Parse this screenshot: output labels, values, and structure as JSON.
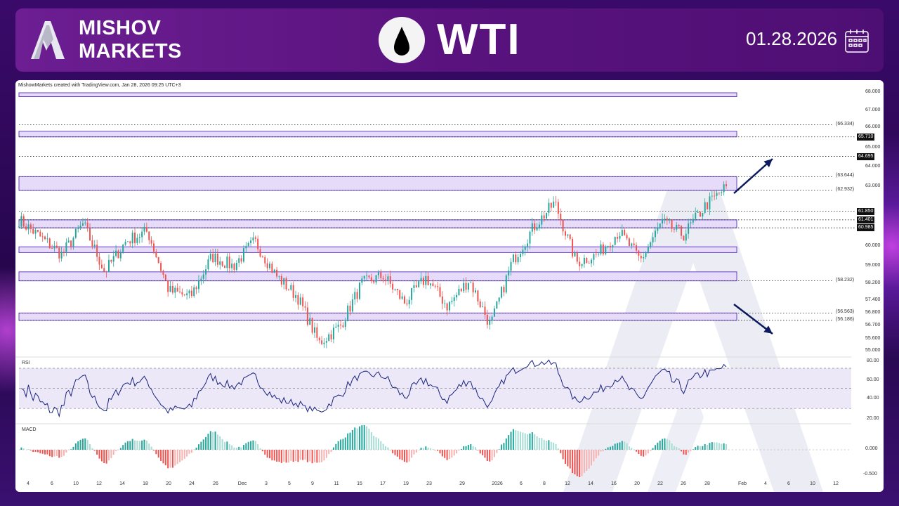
{
  "header": {
    "brand_line1": "MISHOV",
    "brand_line2": "MARKETS",
    "instrument": "WTI",
    "date": "01.28.2026",
    "icons": {
      "logo": "mishov-a-logo",
      "drop": "oil-drop-icon",
      "calendar": "calendar-icon"
    }
  },
  "colors": {
    "up": "#26a69a",
    "down": "#ef5350",
    "zone": "#6a3fc4",
    "rsi": "#1a237e",
    "arrow": "#0d1b5e"
  },
  "chart_data": {
    "type": "candlestick",
    "credit": "MishowMarkets created with TradingView.com, Jan 28, 2026 09:25 UTC+3",
    "price_axis": [
      "68.000",
      "67.000",
      "66.000",
      "65.000",
      "64.000",
      "63.000",
      "60.000",
      "59.000",
      "58.200",
      "57.400",
      "56.800",
      "56.700",
      "55.600",
      "55.000"
    ],
    "ylim": [
      55,
      68
    ],
    "levels": [
      {
        "price": 66.334,
        "label": "(66.334)",
        "tag": false
      },
      {
        "price": 65.71,
        "label": "65.710",
        "tag": true
      },
      {
        "price": 64.695,
        "label": "64.695",
        "tag": true
      },
      {
        "price": 63.644,
        "label": "(63.644)",
        "tag": false
      },
      {
        "price": 62.932,
        "label": "(62.932)",
        "tag": false
      },
      {
        "price": 61.85,
        "label": "61.850",
        "tag": true
      },
      {
        "price": 61.401,
        "label": "61.401",
        "tag": true
      },
      {
        "price": 60.985,
        "label": "60.985",
        "tag": true
      },
      {
        "price": 58.232,
        "label": "(58.232)",
        "tag": false
      },
      {
        "price": 56.563,
        "label": "(56.563)",
        "tag": false
      },
      {
        "price": 56.186,
        "label": "(56.186)",
        "tag": false
      }
    ],
    "zones": [
      [
        67.8,
        68.0
      ],
      [
        65.71,
        66.0
      ],
      [
        62.932,
        63.644
      ],
      [
        60.985,
        61.401
      ],
      [
        59.7,
        60.0
      ],
      [
        58.232,
        58.7
      ],
      [
        56.186,
        56.563
      ]
    ],
    "close_path": [
      [
        0,
        61.4
      ],
      [
        1,
        60.5
      ],
      [
        2,
        59.6
      ],
      [
        3,
        61.2
      ],
      [
        4,
        58.7
      ],
      [
        5,
        60.3
      ],
      [
        6,
        60.8
      ],
      [
        7,
        57.7
      ],
      [
        8,
        57.4
      ],
      [
        9,
        59.5
      ],
      [
        10,
        59.0
      ],
      [
        11,
        60.3
      ],
      [
        12,
        58.5
      ],
      [
        13,
        57.4
      ],
      [
        14,
        55.0
      ],
      [
        15,
        55.9
      ],
      [
        16,
        58.1
      ],
      [
        17,
        58.5
      ],
      [
        18,
        57.1
      ],
      [
        19,
        58.4
      ],
      [
        20,
        56.9
      ],
      [
        21,
        58.3
      ],
      [
        22,
        55.9
      ],
      [
        23,
        59.2
      ],
      [
        24,
        61.0
      ],
      [
        25,
        62.3
      ],
      [
        26,
        59.2
      ],
      [
        27,
        59.6
      ],
      [
        28,
        60.8
      ],
      [
        29,
        59.3
      ],
      [
        30,
        61.3
      ],
      [
        31,
        60.6
      ],
      [
        32,
        62.1
      ],
      [
        33,
        63.1
      ]
    ],
    "x_axis": [
      "4",
      "6",
      "10",
      "12",
      "14",
      "18",
      "20",
      "24",
      "26",
      "Dec",
      "3",
      "5",
      "9",
      "11",
      "15",
      "17",
      "19",
      "23",
      "29",
      "2026",
      "6",
      "8",
      "12",
      "14",
      "16",
      "20",
      "22",
      "26",
      "28",
      "Feb",
      "4",
      "6",
      "10",
      "12"
    ],
    "rsi": {
      "label": "RSI",
      "axis": [
        "80.00",
        "60.00",
        "40.00",
        "20.00"
      ],
      "bands": [
        30,
        50,
        70
      ]
    },
    "macd": {
      "label": "MACD",
      "axis": [
        "0.000",
        "-0.500"
      ]
    }
  }
}
